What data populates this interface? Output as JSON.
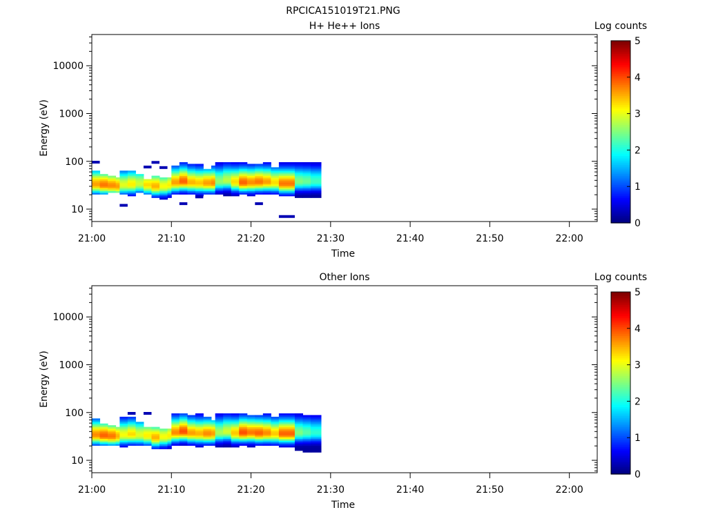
{
  "figure": {
    "title": "RPCICA151019T21.PNG"
  },
  "chart_data": [
    {
      "type": "heatmap",
      "title": "H+ He++ Ions",
      "xlabel": "Time",
      "ylabel": "Energy (eV)",
      "x_ticks": [
        "21:00",
        "21:10",
        "21:20",
        "21:30",
        "21:40",
        "21:50",
        "22:00"
      ],
      "y_ticks": [
        "10",
        "100",
        "1000",
        "10000"
      ],
      "y_scale": "log",
      "ylim": [
        5.5,
        45000
      ],
      "xlim_minutes": [
        0,
        63.5
      ],
      "colorbar": {
        "label": "Log counts",
        "ticks": [
          "0",
          "1",
          "2",
          "3",
          "4",
          "5"
        ],
        "range": [
          0,
          5
        ],
        "colormap": "jet"
      },
      "columns": [
        {
          "t": 0.0,
          "lo": 20,
          "hi": 65,
          "peak": 33,
          "max": 3.6,
          "sp": [
            96
          ]
        },
        {
          "t": 1.0,
          "lo": 21,
          "hi": 55,
          "peak": 32,
          "max": 3.8
        },
        {
          "t": 2.0,
          "lo": 22,
          "hi": 50,
          "peak": 31,
          "max": 3.7
        },
        {
          "t": 3.0,
          "lo": 22,
          "hi": 48,
          "peak": 30,
          "max": 3.6
        },
        {
          "t": 3.5,
          "lo": 21,
          "hi": 62,
          "peak": 32,
          "max": 3.0,
          "sp": [
            12
          ]
        },
        {
          "t": 4.5,
          "lo": 19,
          "hi": 66,
          "peak": 33,
          "max": 3.2
        },
        {
          "t": 5.5,
          "lo": 22,
          "hi": 55,
          "peak": 34,
          "max": 2.9
        },
        {
          "t": 6.5,
          "lo": 20,
          "hi": 42,
          "peak": 32,
          "max": 3.3,
          "sp": [
            76
          ]
        },
        {
          "t": 7.5,
          "lo": 18,
          "hi": 50,
          "peak": 30,
          "max": 3.5,
          "sp": [
            95
          ]
        },
        {
          "t": 8.5,
          "lo": 16,
          "hi": 45,
          "peak": 30,
          "max": 3.1,
          "sp": [
            74
          ]
        },
        {
          "t": 9.5,
          "lo": 17,
          "hi": 48,
          "peak": 32,
          "max": 3.2
        },
        {
          "t": 10.0,
          "lo": 20,
          "hi": 80,
          "peak": 36,
          "max": 3.6
        },
        {
          "t": 11.0,
          "lo": 20,
          "hi": 95,
          "peak": 38,
          "max": 3.9,
          "sp": [
            13
          ]
        },
        {
          "t": 12.0,
          "lo": 21,
          "hi": 92,
          "peak": 36,
          "max": 3.5
        },
        {
          "t": 13.0,
          "lo": 19,
          "hi": 88,
          "peak": 35,
          "max": 3.4,
          "sp": [
            18
          ]
        },
        {
          "t": 14.0,
          "lo": 20,
          "hi": 70,
          "peak": 35,
          "max": 3.6
        },
        {
          "t": 15.0,
          "lo": 20,
          "hi": 80,
          "peak": 35,
          "max": 3.7
        },
        {
          "t": 15.5,
          "lo": 20,
          "hi": 98,
          "peak": 38,
          "max": 2.6
        },
        {
          "t": 16.5,
          "lo": 19,
          "hi": 96,
          "peak": 40,
          "max": 2.8
        },
        {
          "t": 17.5,
          "lo": 19,
          "hi": 96,
          "peak": 37,
          "max": 3.3
        },
        {
          "t": 18.5,
          "lo": 20,
          "hi": 96,
          "peak": 36,
          "max": 3.9
        },
        {
          "t": 19.5,
          "lo": 19,
          "hi": 92,
          "peak": 36,
          "max": 3.7
        },
        {
          "t": 20.5,
          "lo": 20,
          "hi": 85,
          "peak": 37,
          "max": 3.8,
          "sp": [
            13
          ]
        },
        {
          "t": 21.5,
          "lo": 21,
          "hi": 94,
          "peak": 37,
          "max": 3.6
        },
        {
          "t": 22.5,
          "lo": 20,
          "hi": 78,
          "peak": 36,
          "max": 3.3
        },
        {
          "t": 23.5,
          "lo": 19,
          "hi": 94,
          "peak": 34,
          "max": 3.8,
          "sp": [
            7
          ]
        },
        {
          "t": 25.5,
          "lo": 17,
          "hi": 96,
          "peak": 38,
          "max": 2.5
        },
        {
          "t": 26.5,
          "lo": 17,
          "hi": 96,
          "peak": 38,
          "max": 2.4
        },
        {
          "t": 27.5,
          "lo": 17,
          "hi": 96,
          "peak": 38,
          "max": 2.2
        }
      ]
    },
    {
      "type": "heatmap",
      "title": "Other Ions",
      "xlabel": "Time",
      "ylabel": "Energy (eV)",
      "x_ticks": [
        "21:00",
        "21:10",
        "21:20",
        "21:30",
        "21:40",
        "21:50",
        "22:00"
      ],
      "y_ticks": [
        "10",
        "100",
        "1000",
        "10000"
      ],
      "y_scale": "log",
      "ylim": [
        5.5,
        45000
      ],
      "xlim_minutes": [
        0,
        63.5
      ],
      "colorbar": {
        "label": "Log counts",
        "ticks": [
          "0",
          "1",
          "2",
          "3",
          "4",
          "5"
        ],
        "range": [
          0,
          5
        ],
        "colormap": "jet"
      },
      "columns": [
        {
          "t": 0.0,
          "lo": 20,
          "hi": 78,
          "peak": 34,
          "max": 3.7
        },
        {
          "t": 1.0,
          "lo": 21,
          "hi": 60,
          "peak": 33,
          "max": 3.9
        },
        {
          "t": 2.0,
          "lo": 21,
          "hi": 55,
          "peak": 32,
          "max": 3.8
        },
        {
          "t": 3.0,
          "lo": 20,
          "hi": 50,
          "peak": 32,
          "max": 3.5
        },
        {
          "t": 3.5,
          "lo": 19,
          "hi": 82,
          "peak": 34,
          "max": 3.1
        },
        {
          "t": 4.5,
          "lo": 20,
          "hi": 80,
          "peak": 35,
          "max": 3.3,
          "sp": [
            96
          ]
        },
        {
          "t": 5.5,
          "lo": 21,
          "hi": 65,
          "peak": 34,
          "max": 3.0
        },
        {
          "t": 6.5,
          "lo": 21,
          "hi": 50,
          "peak": 33,
          "max": 3.2,
          "sp": [
            96
          ]
        },
        {
          "t": 7.5,
          "lo": 18,
          "hi": 50,
          "peak": 30,
          "max": 3.5
        },
        {
          "t": 8.5,
          "lo": 17,
          "hi": 45,
          "peak": 31,
          "max": 3.1
        },
        {
          "t": 9.5,
          "lo": 17,
          "hi": 48,
          "peak": 33,
          "max": 3.2
        },
        {
          "t": 10.0,
          "lo": 20,
          "hi": 96,
          "peak": 38,
          "max": 3.7
        },
        {
          "t": 11.0,
          "lo": 20,
          "hi": 95,
          "peak": 40,
          "max": 4.0
        },
        {
          "t": 12.0,
          "lo": 21,
          "hi": 92,
          "peak": 37,
          "max": 3.6
        },
        {
          "t": 13.0,
          "lo": 19,
          "hi": 96,
          "peak": 36,
          "max": 3.5
        },
        {
          "t": 14.0,
          "lo": 20,
          "hi": 80,
          "peak": 36,
          "max": 3.7
        },
        {
          "t": 15.0,
          "lo": 20,
          "hi": 70,
          "peak": 36,
          "max": 3.6
        },
        {
          "t": 15.5,
          "lo": 19,
          "hi": 98,
          "peak": 38,
          "max": 2.7
        },
        {
          "t": 16.5,
          "lo": 19,
          "hi": 96,
          "peak": 40,
          "max": 2.9
        },
        {
          "t": 17.5,
          "lo": 19,
          "hi": 96,
          "peak": 37,
          "max": 3.4
        },
        {
          "t": 18.5,
          "lo": 20,
          "hi": 96,
          "peak": 38,
          "max": 4.0
        },
        {
          "t": 19.5,
          "lo": 19,
          "hi": 92,
          "peak": 38,
          "max": 3.8
        },
        {
          "t": 20.5,
          "lo": 20,
          "hi": 90,
          "peak": 37,
          "max": 3.9
        },
        {
          "t": 21.5,
          "lo": 21,
          "hi": 94,
          "peak": 37,
          "max": 3.7
        },
        {
          "t": 22.5,
          "lo": 20,
          "hi": 80,
          "peak": 36,
          "max": 3.4
        },
        {
          "t": 23.5,
          "lo": 19,
          "hi": 94,
          "peak": 36,
          "max": 3.9
        },
        {
          "t": 25.5,
          "lo": 16,
          "hi": 96,
          "peak": 38,
          "max": 2.5
        },
        {
          "t": 26.5,
          "lo": 15,
          "hi": 92,
          "peak": 38,
          "max": 2.3
        },
        {
          "t": 27.5,
          "lo": 15,
          "hi": 90,
          "peak": 38,
          "max": 2.1
        }
      ]
    }
  ]
}
